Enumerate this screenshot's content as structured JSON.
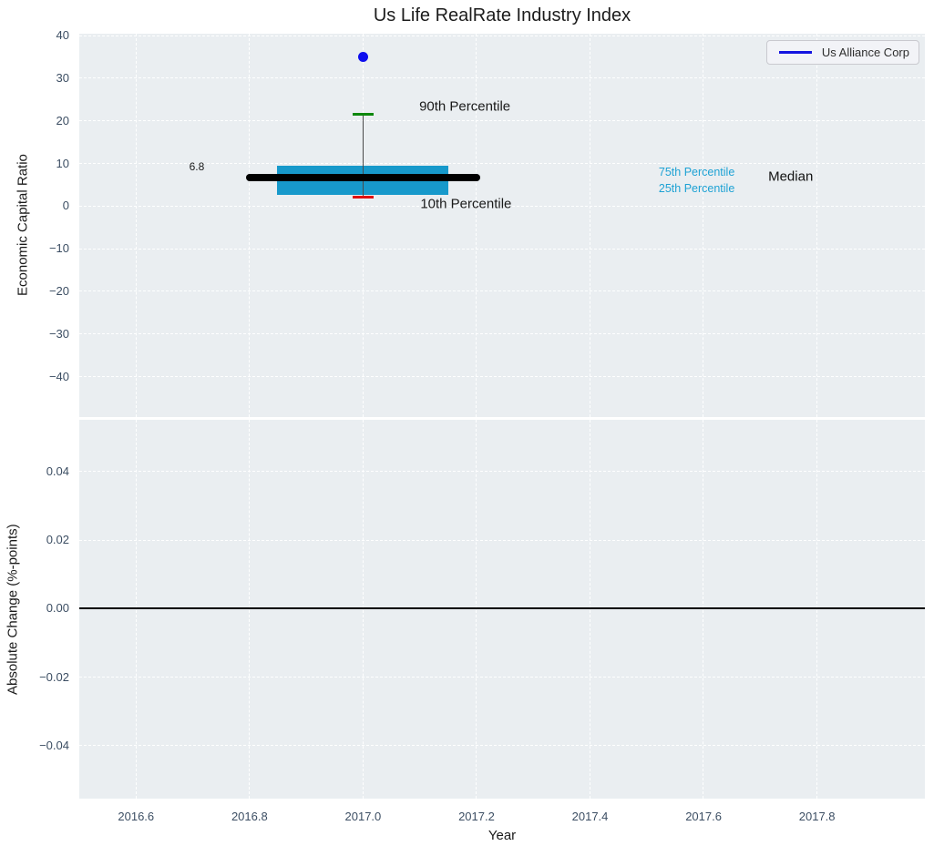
{
  "title": "Us Life RealRate Industry Index",
  "legend": {
    "label": "Us Alliance Corp"
  },
  "colors": {
    "panel_bg": "#eaeef1",
    "grid": "rgba(255,255,255,0.95)",
    "tick_label": "#3c4e63",
    "box_fill": "#1799cb",
    "green_cap": "#0d870d",
    "red_cap": "#e01010",
    "company_point": "#0d0dee",
    "median_line": "#000000",
    "whisker": "#4a4a4a",
    "legend_line": "#1414e0",
    "percentile_label": "#1ea2d4"
  },
  "chart_data": {
    "type": "boxplot+scatter",
    "title": "Us Life RealRate Industry Index",
    "xlabel": "Year",
    "xlim": [
      2016.5,
      2017.99
    ],
    "xticks": [
      2016.6,
      2016.8,
      2017.0,
      2017.2,
      2017.4,
      2017.6,
      2017.8
    ],
    "xtick_labels": [
      "2016.6",
      "2016.8",
      "2017.0",
      "2017.2",
      "2017.4",
      "2017.6",
      "2017.8"
    ],
    "grid": "white dashed on light panel",
    "legend_position": "upper right of top panel",
    "panels": [
      {
        "name": "economic-capital-ratio",
        "ylabel": "Economic Capital Ratio",
        "ylim": [
          -49.5,
          40.5
        ],
        "yticks": [
          40,
          30,
          20,
          10,
          0,
          -10,
          -20,
          -30,
          -40
        ],
        "ytick_labels": [
          "40",
          "30",
          "20",
          "10",
          "0",
          "−10",
          "−20",
          "−30",
          "−40"
        ],
        "box": {
          "x": 2017.0,
          "p10": 2.2,
          "p25": 2.7,
          "median": 6.8,
          "p75": 9.5,
          "p90": 21.5,
          "box_halfwidth": 0.151,
          "median_halfwidth": 0.206,
          "cap_halfwidth": 0.018
        },
        "company_point": {
          "series": "Us Alliance Corp",
          "x": 2017.0,
          "y": 35
        },
        "annotations": [
          {
            "text": "6.8",
            "x": 2016.707,
            "y": 9.3,
            "ha": "center",
            "color": "#1a1a1a",
            "size": 12
          },
          {
            "text": "90th Percentile",
            "x": 2017.099,
            "y": 23.3,
            "ha": "left",
            "color": "#1a1a1a",
            "size": 15
          },
          {
            "text": "10th Percentile",
            "x": 2017.101,
            "y": 0.6,
            "ha": "left",
            "color": "#1a1a1a",
            "size": 15
          },
          {
            "text": "75th Percentile",
            "x": 2017.521,
            "y": 8.0,
            "ha": "left",
            "color": "#1ea2d4",
            "size": 12.5
          },
          {
            "text": "25th Percentile",
            "x": 2017.521,
            "y": 4.2,
            "ha": "left",
            "color": "#1ea2d4",
            "size": 12.5
          },
          {
            "text": "Median",
            "x": 2017.714,
            "y": 6.95,
            "ha": "left",
            "color": "#111111",
            "size": 15
          }
        ]
      },
      {
        "name": "absolute-change",
        "ylabel": "Absolute Change (%-points)",
        "ylim": [
          -0.0555,
          0.0552
        ],
        "yticks": [
          0.04,
          0.02,
          0.0,
          -0.02,
          -0.04
        ],
        "ytick_labels": [
          "0.04",
          "0.02",
          "0.00",
          "−0.02",
          "−0.04"
        ],
        "zero_line": 0.0
      }
    ]
  }
}
